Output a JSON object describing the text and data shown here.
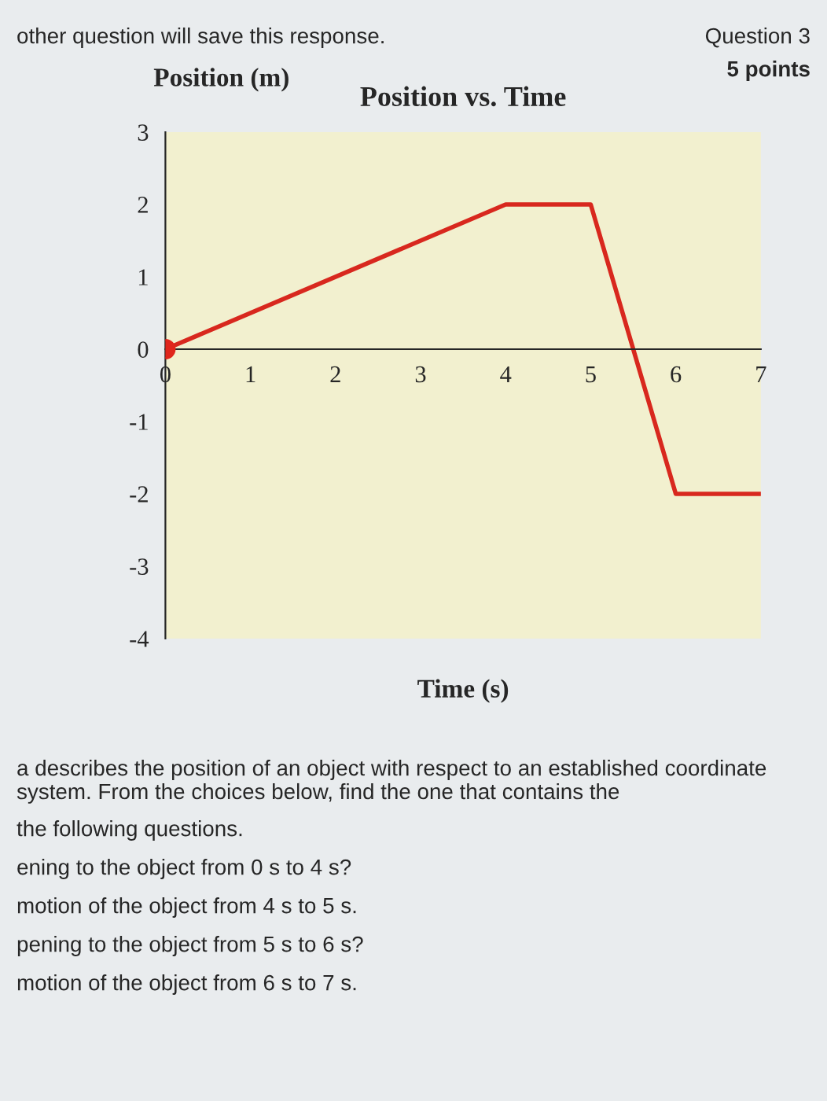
{
  "chart_data": {
    "type": "line",
    "title": "Position vs. Time",
    "xlabel": "Time (s)",
    "ylabel": "Position (m)",
    "x": [
      0,
      4,
      5,
      6,
      7
    ],
    "series": [
      {
        "color": "#d8281e",
        "values": [
          0,
          2,
          2,
          -2,
          -2
        ],
        "marker": "none"
      },
      {
        "type": "scatter",
        "color": "#e0261c",
        "x": [
          0
        ],
        "values": [
          0
        ],
        "marker": "circle"
      }
    ],
    "xlim": [
      0,
      7
    ],
    "xticks": [
      0,
      1,
      2,
      3,
      4,
      5,
      6,
      7
    ],
    "ylim": [
      -4,
      3
    ],
    "yticks": [
      -4,
      -3,
      -2,
      -1,
      0,
      1,
      2,
      3
    ],
    "grid": false,
    "legend": false,
    "annotations": [
      "other question will save this response.",
      "Question 3",
      "5 points",
      "a describes the position of an object with respect to an established coordinate system. From the choices below, find the one that contains the",
      "the following questions.",
      "ening to the object from 0 s to 4 s?",
      "motion of the object from 4 s to 5 s.",
      "pening to the object from 5 s to 6 s?",
      "motion of the object from 6 s to 7 s."
    ]
  }
}
